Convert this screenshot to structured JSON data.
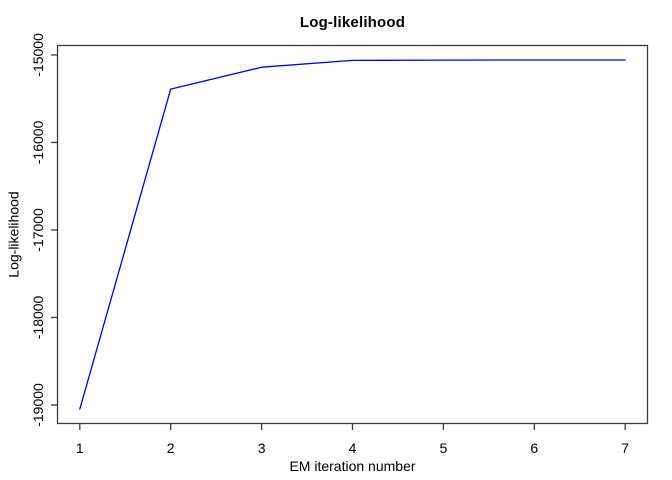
{
  "chart_data": {
    "type": "line",
    "title": "Log-likelihood",
    "xlabel": "EM iteration number",
    "ylabel": "Log-likelihood",
    "x": [
      1,
      2,
      3,
      4,
      5,
      6,
      7
    ],
    "y": [
      -19047,
      -15390,
      -15140,
      -15063,
      -15059,
      -15058,
      -15058
    ],
    "x_ticks": [
      1,
      2,
      3,
      4,
      5,
      6,
      7
    ],
    "y_ticks": [
      -19000,
      -18000,
      -17000,
      -16000,
      -15000
    ],
    "xlim": [
      0.76,
      7.24
    ],
    "ylim": [
      -19206,
      -14898
    ],
    "grid": false,
    "legend": "none",
    "line_color": "#0000EE",
    "axis_color": "#3c3c3c",
    "text_color": "#000000",
    "background": "#ffffff"
  }
}
